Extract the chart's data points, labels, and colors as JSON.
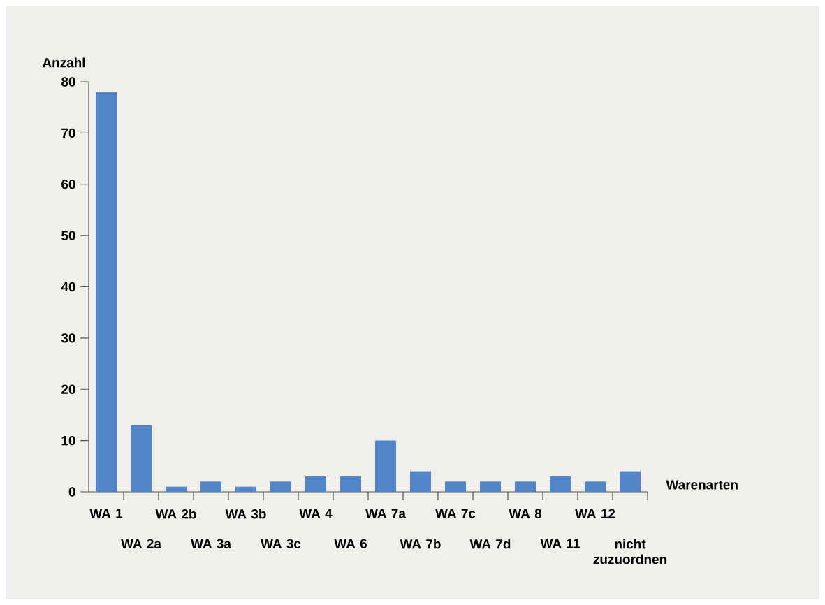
{
  "chart_data": {
    "type": "bar",
    "ylabel": "Anzahl",
    "xlabel": "Warenarten",
    "categories": [
      "WA 1",
      "WA 2a",
      "WA 2b",
      "WA 3a",
      "WA 3b",
      "WA 3c",
      "WA 4",
      "WA 6",
      "WA 7a",
      "WA 7b",
      "WA 7c",
      "WA 7d",
      "WA 8",
      "WA 11",
      "WA 12",
      "nicht zuzuordnen"
    ],
    "values": [
      78,
      13,
      1,
      2,
      1,
      2,
      3,
      3,
      10,
      4,
      2,
      2,
      2,
      3,
      2,
      4
    ],
    "color": "#5185c8",
    "ylim": [
      0,
      80
    ],
    "yticks": [
      0,
      10,
      20,
      30,
      40,
      50,
      60,
      70,
      80
    ],
    "grid": false
  }
}
